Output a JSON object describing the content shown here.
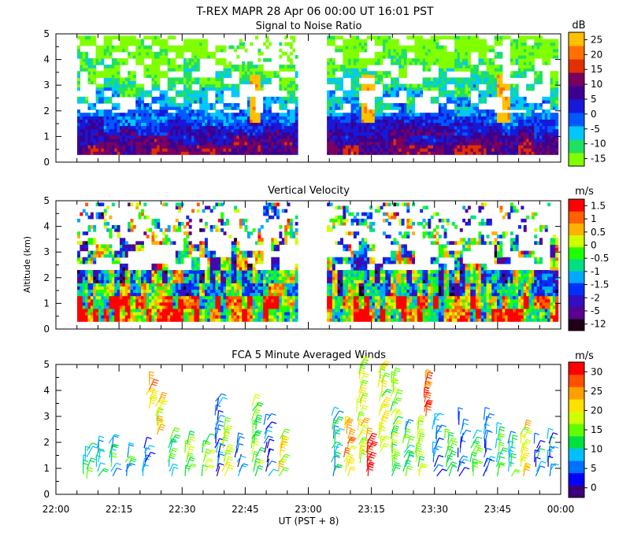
{
  "header": {
    "title": "T-REX   MAPR 28 Apr 06   00:00 UT   16:01   PST"
  },
  "colors": {
    "background": "#ffffff",
    "snr_scale": [
      "#80ff00",
      "#20e060",
      "#00c8ff",
      "#0058ff",
      "#1818d8",
      "#3c0090",
      "#7a0060",
      "#e03000",
      "#ff7000",
      "#ffc000"
    ],
    "vel_scale": [
      "#200018",
      "#5a0090",
      "#3010c0",
      "#0030ff",
      "#00a8ff",
      "#00e080",
      "#20ff00",
      "#d0ff00",
      "#ffb000",
      "#ff6000",
      "#ff0000"
    ],
    "wind_scale": [
      "#3c0078",
      "#0000ff",
      "#0070ff",
      "#00c0ff",
      "#00e040",
      "#60ff00",
      "#d0ff00",
      "#ffe000",
      "#ffa000",
      "#ff5000",
      "#ff0000"
    ]
  },
  "chart_data": [
    {
      "type": "heatmap",
      "title": "Signal to Noise Ratio",
      "ylabel": "",
      "unit_label": "dB",
      "ylim": [
        0,
        5
      ],
      "y_ticks": [
        "0",
        "1",
        "2",
        "3",
        "4",
        "5"
      ],
      "colorbar_ticks": [
        "25",
        "20",
        "15",
        "10",
        "5",
        "0",
        "-5",
        "-10",
        "-15"
      ],
      "colorbar_range": [
        -15,
        25
      ],
      "x_range_min": [
        0,
        120
      ],
      "data_gap_min": [
        57,
        64
      ],
      "mean_profile_db": [
        {
          "alt_km": 0.5,
          "db": 10
        },
        {
          "alt_km": 1.0,
          "db": 6
        },
        {
          "alt_km": 1.5,
          "db": 1
        },
        {
          "alt_km": 2.0,
          "db": -3
        },
        {
          "alt_km": 3.0,
          "db": -9
        },
        {
          "alt_km": 4.0,
          "db": -13
        },
        {
          "alt_km": 5.0,
          "db": -15
        }
      ]
    },
    {
      "type": "heatmap",
      "title": "Vertical Velocity",
      "ylabel": "Altitude (km)",
      "unit_label": "m/s",
      "ylim": [
        0,
        5
      ],
      "y_ticks": [
        "0",
        "1",
        "2",
        "3",
        "4",
        "5"
      ],
      "colorbar_ticks": [
        "1.5",
        "1",
        "0.5",
        "0",
        "-0.5",
        "-1",
        "-1.5",
        "-2",
        "-5",
        "-12"
      ],
      "x_range_min": [
        0,
        120
      ],
      "data_gap_min": [
        57,
        64
      ]
    },
    {
      "type": "scatter",
      "subtype": "wind-barbs",
      "title": "FCA 5 Minute Averaged Winds",
      "xlabel": "UT  (PST + 8)",
      "unit_label": "m/s",
      "ylim": [
        0,
        5
      ],
      "y_ticks": [
        "0",
        "1",
        "2",
        "3",
        "4",
        "5"
      ],
      "colorbar_ticks": [
        "30",
        "25",
        "20",
        "15",
        "10",
        "5",
        "0"
      ],
      "colorbar_range": [
        0,
        30
      ],
      "x_tick_labels": [
        "22:00",
        "22:15",
        "22:30",
        "22:45",
        "23:00",
        "23:15",
        "23:30",
        "23:45",
        "00:00"
      ],
      "x_range_min": [
        0,
        120
      ],
      "profiles": [
        {
          "t_min": 7,
          "alt_km": [
            0.6,
            1.7
          ],
          "speed_ms": 12
        },
        {
          "t_min": 10,
          "alt_km": [
            0.7,
            1.8
          ],
          "speed_ms": 9
        },
        {
          "t_min": 13,
          "alt_km": [
            0.7,
            2.0
          ],
          "speed_ms": 11
        },
        {
          "t_min": 17,
          "alt_km": [
            0.7,
            1.7
          ],
          "speed_ms": 10
        },
        {
          "t_min": 21,
          "alt_km": [
            0.7,
            1.8
          ],
          "speed_ms": 8
        },
        {
          "t_min": 22,
          "alt_km": [
            3.3,
            4.3
          ],
          "speed_ms": 21
        },
        {
          "t_min": 24,
          "alt_km": [
            2.3,
            3.6
          ],
          "speed_ms": 20
        },
        {
          "t_min": 27,
          "alt_km": [
            0.7,
            2.2
          ],
          "speed_ms": 13
        },
        {
          "t_min": 31,
          "alt_km": [
            0.7,
            2.0
          ],
          "speed_ms": 16
        },
        {
          "t_min": 35,
          "alt_km": [
            0.7,
            2.1
          ],
          "speed_ms": 15
        },
        {
          "t_min": 38,
          "alt_km": [
            0.7,
            3.7
          ],
          "speed_ms": 6
        },
        {
          "t_min": 40,
          "alt_km": [
            0.7,
            2.5
          ],
          "speed_ms": 17
        },
        {
          "t_min": 43,
          "alt_km": [
            0.7,
            2.1
          ],
          "speed_ms": 6
        },
        {
          "t_min": 47,
          "alt_km": [
            0.7,
            3.5
          ],
          "speed_ms": 16
        },
        {
          "t_min": 50,
          "alt_km": [
            0.7,
            3.0
          ],
          "speed_ms": 5
        },
        {
          "t_min": 53,
          "alt_km": [
            0.7,
            2.3
          ],
          "speed_ms": 19
        },
        {
          "t_min": 66,
          "alt_km": [
            0.7,
            3.2
          ],
          "speed_ms": 10
        },
        {
          "t_min": 69,
          "alt_km": [
            0.7,
            2.8
          ],
          "speed_ms": 22
        },
        {
          "t_min": 72,
          "alt_km": [
            1.2,
            5.0
          ],
          "speed_ms": 18
        },
        {
          "t_min": 74,
          "alt_km": [
            0.7,
            2.2
          ],
          "speed_ms": 28
        },
        {
          "t_min": 77,
          "alt_km": [
            1.6,
            4.9
          ],
          "speed_ms": 17
        },
        {
          "t_min": 80,
          "alt_km": [
            0.7,
            4.5
          ],
          "speed_ms": 15
        },
        {
          "t_min": 83,
          "alt_km": [
            0.7,
            2.6
          ],
          "speed_ms": 12
        },
        {
          "t_min": 86,
          "alt_km": [
            0.7,
            2.7
          ],
          "speed_ms": 16
        },
        {
          "t_min": 88,
          "alt_km": [
            3.0,
            4.6
          ],
          "speed_ms": 27
        },
        {
          "t_min": 90,
          "alt_km": [
            0.7,
            3.0
          ],
          "speed_ms": 7
        },
        {
          "t_min": 93,
          "alt_km": [
            0.7,
            2.3
          ],
          "speed_ms": 13
        },
        {
          "t_min": 96,
          "alt_km": [
            0.7,
            3.0
          ],
          "speed_ms": 7
        },
        {
          "t_min": 99,
          "alt_km": [
            0.7,
            2.2
          ],
          "speed_ms": 12
        },
        {
          "t_min": 102,
          "alt_km": [
            0.7,
            3.0
          ],
          "speed_ms": 6
        },
        {
          "t_min": 105,
          "alt_km": [
            0.7,
            2.4
          ],
          "speed_ms": 14
        },
        {
          "t_min": 108,
          "alt_km": [
            0.7,
            2.1
          ],
          "speed_ms": 10
        },
        {
          "t_min": 111,
          "alt_km": [
            0.7,
            2.6
          ],
          "speed_ms": 19
        },
        {
          "t_min": 114,
          "alt_km": [
            0.7,
            2.1
          ],
          "speed_ms": 7
        },
        {
          "t_min": 117,
          "alt_km": [
            0.7,
            2.3
          ],
          "speed_ms": 8
        }
      ]
    }
  ]
}
